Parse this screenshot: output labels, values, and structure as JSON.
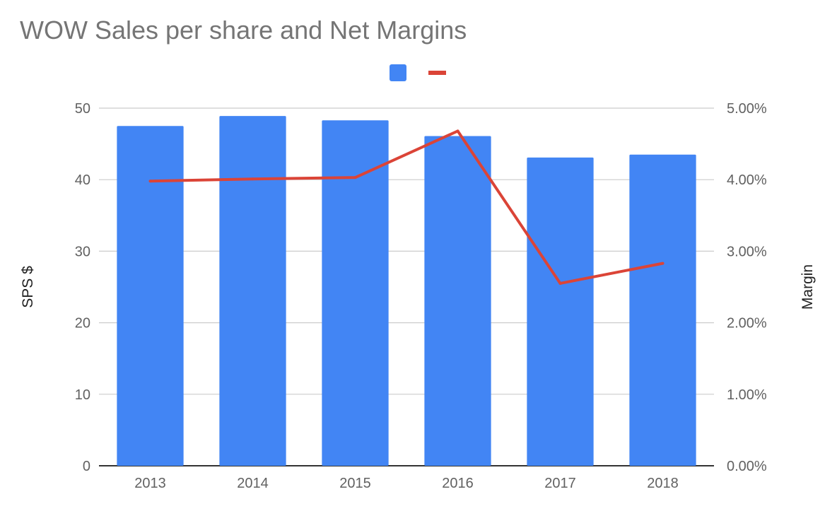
{
  "title": "WOW Sales per share and Net Margins",
  "chart_data": {
    "type": "bar",
    "title": "WOW Sales per share and Net Margins",
    "categories": [
      "2013",
      "2014",
      "2015",
      "2016",
      "2017",
      "2018"
    ],
    "series": [
      {
        "type": "bar",
        "axis": "left",
        "color": "#4285f4",
        "values": [
          47.5,
          48.9,
          48.3,
          46.1,
          43.1,
          43.5
        ]
      },
      {
        "type": "line",
        "axis": "right",
        "color": "#db4437",
        "values": [
          0.0398,
          0.0401,
          0.0403,
          0.0468,
          0.0255,
          0.0283
        ]
      }
    ],
    "ylabel": "SPS $",
    "ylabel_right": "Margin",
    "ylim": [
      0,
      50
    ],
    "ylim_right": [
      0,
      0.05
    ],
    "y_ticks": [
      "0",
      "10",
      "20",
      "30",
      "40",
      "50"
    ],
    "y_ticks_right": [
      "0.00%",
      "1.00%",
      "2.00%",
      "3.00%",
      "4.00%",
      "5.00%"
    ],
    "grid": true,
    "legend": "top-center"
  }
}
